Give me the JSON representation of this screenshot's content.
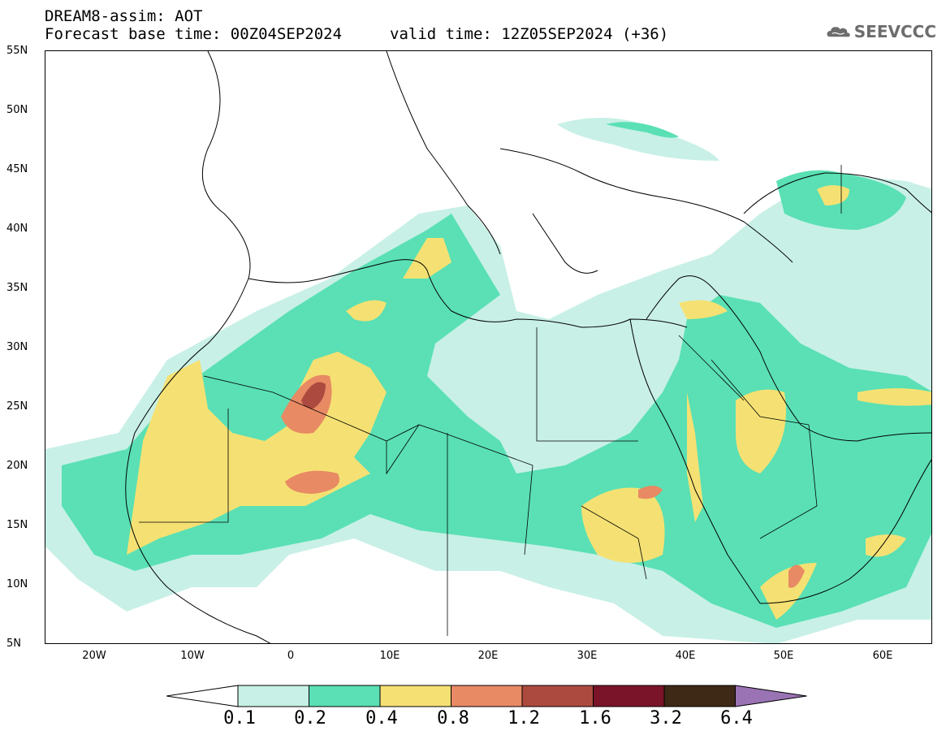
{
  "header": {
    "line1": "DREAM8-assim: AOT",
    "line2": "Forecast base time: 00Z04SEP2024",
    "valid": "valid time: 12Z05SEP2024 (+36)"
  },
  "logo": {
    "text": "SEEVCCC",
    "icon": "cloud-icon"
  },
  "map": {
    "region": "North Africa and Middle East",
    "lon_range": [
      -25,
      65
    ],
    "lat_range": [
      5,
      55
    ],
    "lat_labels": [
      "55N",
      "50N",
      "45N",
      "40N",
      "35N",
      "30N",
      "25N",
      "20N",
      "15N",
      "10N",
      "5N"
    ],
    "lon_labels": [
      "20W",
      "10W",
      "0",
      "10E",
      "20E",
      "30E",
      "40E",
      "50E",
      "60E"
    ]
  },
  "colorbar": {
    "levels": [
      "0.1",
      "0.2",
      "0.4",
      "0.8",
      "1.2",
      "1.6",
      "3.2",
      "6.4"
    ],
    "colors": [
      "#ffffff",
      "#c8f0e6",
      "#5ae0b4",
      "#f5e173",
      "#e88a64",
      "#ac4a40",
      "#7a1428",
      "#3e2816",
      "#9a73b4"
    ]
  }
}
